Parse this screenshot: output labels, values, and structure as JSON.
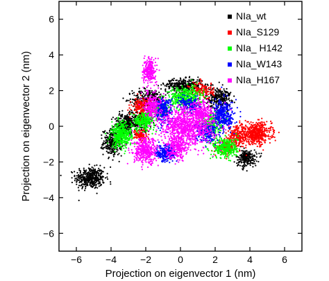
{
  "chart_data": {
    "type": "scatter",
    "title": "",
    "xlabel": "Projection on eigenvector 1 (nm)",
    "ylabel": "Projection on eigenvector 2 (nm)",
    "xlim": [
      -7,
      7
    ],
    "ylim": [
      -7,
      7
    ],
    "xticks": [
      -6,
      -4,
      -2,
      0,
      2,
      4,
      6
    ],
    "yticks": [
      -6,
      -4,
      -2,
      0,
      2,
      4,
      6
    ],
    "xtick_labels": [
      "−6",
      "−4",
      "−2",
      "0",
      "2",
      "4",
      "6"
    ],
    "ytick_labels": [
      "−6",
      "−4",
      "−2",
      "0",
      "2",
      "4",
      "6"
    ],
    "grid": false,
    "legend_position": "top-right",
    "series": [
      {
        "name": "NIa_wt",
        "color": "#000000",
        "regions": [
          {
            "center": [
              -5.2,
              -2.9
            ],
            "spread": [
              0.7,
              0.5
            ],
            "n": 420
          },
          {
            "center": [
              -3.9,
              -0.9
            ],
            "spread": [
              0.45,
              0.6
            ],
            "n": 300
          },
          {
            "center": [
              -3.2,
              0.1
            ],
            "spread": [
              0.5,
              0.5
            ],
            "n": 250
          },
          {
            "center": [
              -1.8,
              1.5
            ],
            "spread": [
              0.8,
              0.5
            ],
            "n": 320
          },
          {
            "center": [
              0.2,
              2.3
            ],
            "spread": [
              0.9,
              0.3
            ],
            "n": 360
          },
          {
            "center": [
              2.2,
              1.6
            ],
            "spread": [
              0.6,
              0.5
            ],
            "n": 260
          },
          {
            "center": [
              3.8,
              -1.8
            ],
            "spread": [
              0.5,
              0.4
            ],
            "n": 220
          },
          {
            "center": [
              -2.4,
              0.3
            ],
            "spread": [
              0.6,
              0.5
            ],
            "n": 200
          }
        ]
      },
      {
        "name": "NIa_S129",
        "color": "#ff0000",
        "regions": [
          {
            "center": [
              4.4,
              -0.4
            ],
            "spread": [
              0.7,
              0.5
            ],
            "n": 480
          },
          {
            "center": [
              3.3,
              -0.6
            ],
            "spread": [
              0.5,
              0.5
            ],
            "n": 260
          },
          {
            "center": [
              2.6,
              -1.2
            ],
            "spread": [
              0.4,
              0.3
            ],
            "n": 160
          },
          {
            "center": [
              -2.2,
              1.1
            ],
            "spread": [
              0.5,
              0.4
            ],
            "n": 200
          },
          {
            "center": [
              -2.3,
              -0.5
            ],
            "spread": [
              0.3,
              0.3
            ],
            "n": 120
          },
          {
            "center": [
              1.2,
              2.0
            ],
            "spread": [
              0.6,
              0.4
            ],
            "n": 160
          }
        ]
      },
      {
        "name": "NIa_ H142",
        "color": "#00ff00",
        "regions": [
          {
            "center": [
              -3.4,
              -0.5
            ],
            "spread": [
              0.5,
              0.6
            ],
            "n": 380
          },
          {
            "center": [
              -2.1,
              0.3
            ],
            "spread": [
              0.5,
              0.4
            ],
            "n": 240
          },
          {
            "center": [
              0.3,
              1.6
            ],
            "spread": [
              0.8,
              0.5
            ],
            "n": 420
          },
          {
            "center": [
              2.6,
              -1.2
            ],
            "spread": [
              0.6,
              0.5
            ],
            "n": 320
          },
          {
            "center": [
              1.8,
              0.2
            ],
            "spread": [
              0.5,
              0.5
            ],
            "n": 200
          },
          {
            "center": [
              -1.2,
              1.0
            ],
            "spread": [
              0.4,
              0.3
            ],
            "n": 140
          }
        ]
      },
      {
        "name": "NIa_W143",
        "color": "#0000ff",
        "regions": [
          {
            "center": [
              -1.0,
              0.9
            ],
            "spread": [
              0.4,
              0.6
            ],
            "n": 260
          },
          {
            "center": [
              -0.8,
              -1.5
            ],
            "spread": [
              0.5,
              0.4
            ],
            "n": 260
          },
          {
            "center": [
              2.5,
              0.6
            ],
            "spread": [
              0.5,
              0.7
            ],
            "n": 340
          },
          {
            "center": [
              1.5,
              -0.3
            ],
            "spread": [
              0.5,
              0.5
            ],
            "n": 200
          },
          {
            "center": [
              0.5,
              1.2
            ],
            "spread": [
              0.5,
              0.3
            ],
            "n": 160
          }
        ]
      },
      {
        "name": "NIa_H167",
        "color": "#ff00ff",
        "regions": [
          {
            "center": [
              -1.8,
              3.1
            ],
            "spread": [
              0.3,
              0.6
            ],
            "n": 260
          },
          {
            "center": [
              -1.6,
              1.2
            ],
            "spread": [
              0.4,
              0.6
            ],
            "n": 240
          },
          {
            "center": [
              0.4,
              0.0
            ],
            "spread": [
              1.3,
              0.9
            ],
            "n": 1000
          },
          {
            "center": [
              -2.0,
              -1.4
            ],
            "spread": [
              0.6,
              0.6
            ],
            "n": 400
          },
          {
            "center": [
              -0.2,
              -1.2
            ],
            "spread": [
              0.5,
              0.5
            ],
            "n": 240
          },
          {
            "center": [
              1.2,
              0.8
            ],
            "spread": [
              0.5,
              0.5
            ],
            "n": 200
          }
        ]
      }
    ]
  }
}
